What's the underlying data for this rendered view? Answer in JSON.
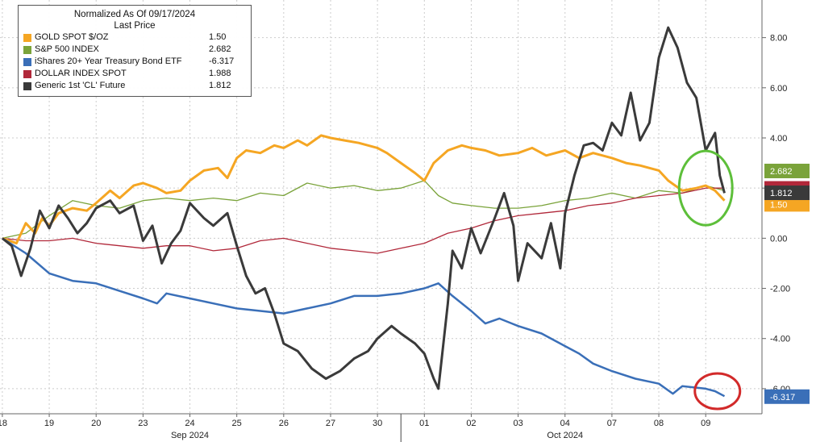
{
  "legend": {
    "title": "Normalized As Of 09/17/2024",
    "subtitle": "Last Price"
  },
  "chart_data": {
    "type": "line",
    "title": "Normalized As Of 09/17/2024",
    "subtitle": "Last Price",
    "y_axis_position": "right",
    "ylim": [
      -7,
      9.5
    ],
    "y_ticks": [
      8,
      6,
      4,
      2,
      0,
      -2,
      -4,
      -6
    ],
    "y_tick_labels": [
      "8.00",
      "6.00",
      "4.00",
      "2.00",
      "0.00",
      "-2.00",
      "-4.00",
      "-6.00"
    ],
    "x_day_labels": [
      "18",
      "19",
      "20",
      "23",
      "24",
      "25",
      "26",
      "27",
      "30",
      "01",
      "02",
      "03",
      "04",
      "07",
      "08",
      "09"
    ],
    "x_month_labels": [
      "Sep 2024",
      "Oct 2024"
    ],
    "grid": true,
    "legend_position": "top-left",
    "series": [
      {
        "name": "GOLD SPOT $/OZ",
        "last_value": "1.50",
        "color": "#f5a623",
        "tag": "1.50",
        "points": [
          [
            0,
            0
          ],
          [
            0.3,
            -0.2
          ],
          [
            0.5,
            0.6
          ],
          [
            0.7,
            0.2
          ],
          [
            0.85,
            0.8
          ],
          [
            1,
            0.5
          ],
          [
            1.2,
            1.0
          ],
          [
            1.5,
            1.2
          ],
          [
            1.8,
            1.1
          ],
          [
            2,
            1.4
          ],
          [
            2.3,
            1.9
          ],
          [
            2.5,
            1.6
          ],
          [
            2.8,
            2.1
          ],
          [
            3,
            2.2
          ],
          [
            3.3,
            2.0
          ],
          [
            3.5,
            1.8
          ],
          [
            3.8,
            1.9
          ],
          [
            4,
            2.3
          ],
          [
            4.3,
            2.7
          ],
          [
            4.6,
            2.8
          ],
          [
            4.8,
            2.4
          ],
          [
            5,
            3.2
          ],
          [
            5.2,
            3.5
          ],
          [
            5.5,
            3.4
          ],
          [
            5.8,
            3.7
          ],
          [
            6,
            3.6
          ],
          [
            6.3,
            3.9
          ],
          [
            6.5,
            3.7
          ],
          [
            6.8,
            4.1
          ],
          [
            7,
            4.0
          ],
          [
            7.3,
            3.9
          ],
          [
            7.6,
            3.8
          ],
          [
            8,
            3.6
          ],
          [
            8.2,
            3.4
          ],
          [
            8.5,
            3.0
          ],
          [
            8.8,
            2.6
          ],
          [
            9,
            2.3
          ],
          [
            9.2,
            3.0
          ],
          [
            9.5,
            3.5
          ],
          [
            9.8,
            3.7
          ],
          [
            10,
            3.6
          ],
          [
            10.3,
            3.5
          ],
          [
            10.6,
            3.3
          ],
          [
            11,
            3.4
          ],
          [
            11.3,
            3.6
          ],
          [
            11.6,
            3.3
          ],
          [
            12,
            3.5
          ],
          [
            12.3,
            3.2
          ],
          [
            12.6,
            3.4
          ],
          [
            13,
            3.2
          ],
          [
            13.3,
            3.0
          ],
          [
            13.6,
            2.9
          ],
          [
            14,
            2.7
          ],
          [
            14.2,
            2.3
          ],
          [
            14.5,
            1.9
          ],
          [
            14.8,
            2.0
          ],
          [
            15,
            2.1
          ],
          [
            15.2,
            1.9
          ],
          [
            15.4,
            1.5
          ]
        ]
      },
      {
        "name": "S&P 500 INDEX",
        "last_value": "2.682",
        "color": "#7aa33a",
        "tag": "2.682",
        "points": [
          [
            0,
            0
          ],
          [
            0.5,
            0.2
          ],
          [
            1,
            0.9
          ],
          [
            1.5,
            1.5
          ],
          [
            2,
            1.3
          ],
          [
            2.5,
            1.2
          ],
          [
            3,
            1.5
          ],
          [
            3.5,
            1.6
          ],
          [
            4,
            1.5
          ],
          [
            4.5,
            1.6
          ],
          [
            5,
            1.5
          ],
          [
            5.5,
            1.8
          ],
          [
            6,
            1.7
          ],
          [
            6.5,
            2.2
          ],
          [
            7,
            2.0
          ],
          [
            7.5,
            2.1
          ],
          [
            8,
            1.9
          ],
          [
            8.5,
            2.0
          ],
          [
            9,
            2.3
          ],
          [
            9.3,
            1.7
          ],
          [
            9.6,
            1.4
          ],
          [
            10,
            1.3
          ],
          [
            10.5,
            1.2
          ],
          [
            11,
            1.2
          ],
          [
            11.5,
            1.3
          ],
          [
            12,
            1.5
          ],
          [
            12.5,
            1.6
          ],
          [
            13,
            1.8
          ],
          [
            13.5,
            1.6
          ],
          [
            14,
            1.9
          ],
          [
            14.5,
            1.8
          ],
          [
            15,
            2.1
          ],
          [
            15.4,
            1.9
          ]
        ]
      },
      {
        "name": "iShares 20+ Year Treasury Bond ETF",
        "last_value": "-6.317",
        "color": "#3a6fb8",
        "tag": "-6.317",
        "points": [
          [
            0,
            0
          ],
          [
            0.5,
            -0.6
          ],
          [
            1,
            -1.4
          ],
          [
            1.5,
            -1.7
          ],
          [
            2,
            -1.8
          ],
          [
            2.5,
            -2.1
          ],
          [
            3,
            -2.4
          ],
          [
            3.3,
            -2.6
          ],
          [
            3.5,
            -2.2
          ],
          [
            4,
            -2.4
          ],
          [
            4.5,
            -2.6
          ],
          [
            5,
            -2.8
          ],
          [
            5.5,
            -2.9
          ],
          [
            6,
            -3.0
          ],
          [
            6.5,
            -2.8
          ],
          [
            7,
            -2.6
          ],
          [
            7.5,
            -2.3
          ],
          [
            8,
            -2.3
          ],
          [
            8.5,
            -2.2
          ],
          [
            9,
            -2.0
          ],
          [
            9.3,
            -1.8
          ],
          [
            9.6,
            -2.3
          ],
          [
            10,
            -2.9
          ],
          [
            10.3,
            -3.4
          ],
          [
            10.6,
            -3.2
          ],
          [
            11,
            -3.5
          ],
          [
            11.5,
            -3.8
          ],
          [
            12,
            -4.3
          ],
          [
            12.3,
            -4.6
          ],
          [
            12.6,
            -5.0
          ],
          [
            13,
            -5.3
          ],
          [
            13.5,
            -5.6
          ],
          [
            14,
            -5.8
          ],
          [
            14.3,
            -6.2
          ],
          [
            14.5,
            -5.9
          ],
          [
            15,
            -6.0
          ],
          [
            15.2,
            -6.1
          ],
          [
            15.4,
            -6.3
          ]
        ]
      },
      {
        "name": "DOLLAR INDEX SPOT",
        "last_value": "1.988",
        "color": "#b1283a",
        "tag": "1.988",
        "points": [
          [
            0,
            0
          ],
          [
            0.5,
            -0.1
          ],
          [
            1,
            -0.1
          ],
          [
            1.5,
            0.0
          ],
          [
            2,
            -0.2
          ],
          [
            2.5,
            -0.3
          ],
          [
            3,
            -0.4
          ],
          [
            3.5,
            -0.3
          ],
          [
            4,
            -0.3
          ],
          [
            4.5,
            -0.5
          ],
          [
            5,
            -0.4
          ],
          [
            5.5,
            -0.1
          ],
          [
            6,
            0.0
          ],
          [
            6.5,
            -0.2
          ],
          [
            7,
            -0.4
          ],
          [
            7.5,
            -0.5
          ],
          [
            8,
            -0.6
          ],
          [
            8.5,
            -0.4
          ],
          [
            9,
            -0.2
          ],
          [
            9.5,
            0.2
          ],
          [
            10,
            0.4
          ],
          [
            10.5,
            0.7
          ],
          [
            11,
            0.9
          ],
          [
            11.5,
            1.0
          ],
          [
            12,
            1.1
          ],
          [
            12.5,
            1.3
          ],
          [
            13,
            1.4
          ],
          [
            13.5,
            1.6
          ],
          [
            14,
            1.7
          ],
          [
            14.5,
            1.8
          ],
          [
            15,
            2.0
          ],
          [
            15.4,
            2.0
          ]
        ]
      },
      {
        "name": "Generic 1st 'CL' Future",
        "last_value": "1.812",
        "color": "#3a3a3a",
        "tag": "1.812",
        "points": [
          [
            0,
            0
          ],
          [
            0.2,
            -0.3
          ],
          [
            0.4,
            -1.5
          ],
          [
            0.6,
            -0.4
          ],
          [
            0.8,
            1.1
          ],
          [
            1,
            0.4
          ],
          [
            1.2,
            1.3
          ],
          [
            1.4,
            0.8
          ],
          [
            1.6,
            0.2
          ],
          [
            1.8,
            0.6
          ],
          [
            2,
            1.2
          ],
          [
            2.3,
            1.5
          ],
          [
            2.5,
            1.0
          ],
          [
            2.8,
            1.3
          ],
          [
            3,
            -0.1
          ],
          [
            3.2,
            0.5
          ],
          [
            3.4,
            -1.0
          ],
          [
            3.6,
            -0.2
          ],
          [
            3.8,
            0.3
          ],
          [
            4,
            1.4
          ],
          [
            4.3,
            0.8
          ],
          [
            4.5,
            0.5
          ],
          [
            4.8,
            1.0
          ],
          [
            5,
            -0.3
          ],
          [
            5.2,
            -1.5
          ],
          [
            5.4,
            -2.2
          ],
          [
            5.6,
            -2.0
          ],
          [
            5.8,
            -3.0
          ],
          [
            6,
            -4.2
          ],
          [
            6.3,
            -4.5
          ],
          [
            6.6,
            -5.2
          ],
          [
            6.9,
            -5.6
          ],
          [
            7.2,
            -5.3
          ],
          [
            7.5,
            -4.8
          ],
          [
            7.8,
            -4.5
          ],
          [
            8,
            -4.0
          ],
          [
            8.3,
            -3.5
          ],
          [
            8.5,
            -3.8
          ],
          [
            8.8,
            -4.2
          ],
          [
            9,
            -4.6
          ],
          [
            9.2,
            -5.6
          ],
          [
            9.3,
            -6.0
          ],
          [
            9.5,
            -2.6
          ],
          [
            9.6,
            -0.5
          ],
          [
            9.8,
            -1.2
          ],
          [
            10,
            0.4
          ],
          [
            10.2,
            -0.6
          ],
          [
            10.5,
            0.8
          ],
          [
            10.7,
            1.8
          ],
          [
            10.9,
            0.5
          ],
          [
            11,
            -1.7
          ],
          [
            11.2,
            -0.2
          ],
          [
            11.5,
            -0.8
          ],
          [
            11.7,
            0.6
          ],
          [
            11.9,
            -1.2
          ],
          [
            12,
            1.0
          ],
          [
            12.2,
            2.5
          ],
          [
            12.4,
            3.7
          ],
          [
            12.6,
            3.8
          ],
          [
            12.8,
            3.5
          ],
          [
            13,
            4.6
          ],
          [
            13.2,
            4.1
          ],
          [
            13.4,
            5.8
          ],
          [
            13.6,
            3.9
          ],
          [
            13.8,
            4.6
          ],
          [
            14,
            7.2
          ],
          [
            14.2,
            8.4
          ],
          [
            14.4,
            7.6
          ],
          [
            14.6,
            6.2
          ],
          [
            14.8,
            5.6
          ],
          [
            15,
            3.5
          ],
          [
            15.2,
            4.2
          ],
          [
            15.3,
            2.5
          ],
          [
            15.4,
            1.8
          ]
        ]
      }
    ]
  },
  "annotations": {
    "green_circle": "S&P 500 and crude oil end point",
    "red_circle": "Treasury bond ETF end point"
  }
}
